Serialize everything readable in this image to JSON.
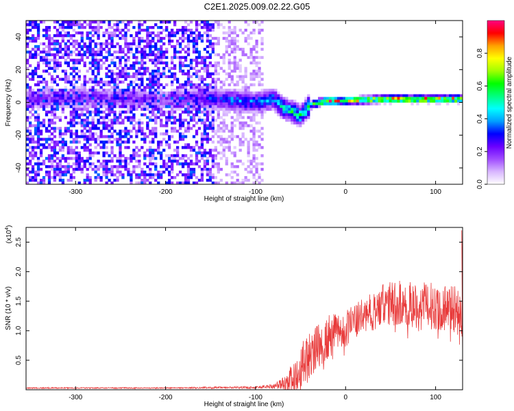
{
  "title": "C2E1.2025.009.02.22.G05",
  "chart_data": [
    {
      "type": "heatmap",
      "title": "",
      "xlabel": "Height of straight line (km)",
      "ylabel": "Frequency (Hz)",
      "xlim": [
        -355,
        130
      ],
      "ylim": [
        -50,
        50
      ],
      "xticks": [
        -300,
        -200,
        -100,
        0,
        100
      ],
      "xtick_labels": [
        "-300",
        "-200",
        "-100",
        "0",
        "100"
      ],
      "yticks": [
        -40,
        -20,
        0,
        20,
        40
      ],
      "ytick_labels": [
        "-40",
        "-20",
        "0",
        "20",
        "40"
      ],
      "colorbar": {
        "label": "Normalized spectral amplitude",
        "range": [
          0,
          1
        ],
        "ticks": [
          0.0,
          0.2,
          0.4,
          0.6,
          0.8
        ],
        "tick_labels": [
          "0.0",
          "0.2",
          "0.4",
          "0.6",
          "0.8"
        ],
        "colormap": [
          "#ffffff",
          "#d8b6ff",
          "#a04cff",
          "#6a00ff",
          "#0000ff",
          "#00a0ff",
          "#00ffff",
          "#00ff80",
          "#00ff00",
          "#a0ff00",
          "#ffff00",
          "#ffa000",
          "#ff0000",
          "#ff0080"
        ]
      },
      "signal_track": [
        {
          "x": -355,
          "f": 2,
          "amp": 0.22
        },
        {
          "x": -300,
          "f": 3,
          "amp": 0.24
        },
        {
          "x": -200,
          "f": 2,
          "amp": 0.2
        },
        {
          "x": -140,
          "f": 2,
          "amp": 0.35
        },
        {
          "x": -120,
          "f": 1,
          "amp": 0.42
        },
        {
          "x": -100,
          "f": 0,
          "amp": 0.4
        },
        {
          "x": -80,
          "f": 2,
          "amp": 0.45
        },
        {
          "x": -70,
          "f": -3,
          "amp": 0.55
        },
        {
          "x": -50,
          "f": -8,
          "amp": 0.55
        },
        {
          "x": -40,
          "f": -2,
          "amp": 0.6
        },
        {
          "x": -30,
          "f": 0,
          "amp": 0.85
        },
        {
          "x": -20,
          "f": 1,
          "amp": 0.9
        },
        {
          "x": 0,
          "f": 1,
          "amp": 0.92
        },
        {
          "x": 40,
          "f": 2,
          "amp": 0.95
        },
        {
          "x": 80,
          "f": 2,
          "amp": 0.95
        },
        {
          "x": 130,
          "f": 2,
          "amp": 0.93
        }
      ]
    },
    {
      "type": "line",
      "title": "",
      "xlabel": "Height of straight line (km)",
      "ylabel": "SNR (10 * v/v)",
      "y_multiplier_label": "(x10",
      "y_multiplier_exp": "4",
      "xlim": [
        -355,
        130
      ],
      "ylim": [
        0,
        2.75
      ],
      "xticks": [
        -300,
        -200,
        -100,
        0,
        100
      ],
      "xtick_labels": [
        "-300",
        "-200",
        "-100",
        "0",
        "100"
      ],
      "yticks": [
        0.5,
        1.0,
        1.5,
        2.0,
        2.5
      ],
      "ytick_labels": [
        "0.5",
        "1.0",
        "1.5",
        "2.0",
        "2.5"
      ],
      "color": "#e83a3a",
      "envelope": {
        "x": [
          -355,
          -200,
          -100,
          -80,
          -65,
          -55,
          -45,
          -35,
          -25,
          -15,
          -5,
          5,
          15,
          25,
          35,
          45,
          55,
          65,
          75,
          85,
          95,
          105,
          115,
          125,
          130
        ],
        "y": [
          0.03,
          0.03,
          0.04,
          0.06,
          0.12,
          0.3,
          0.5,
          0.65,
          0.75,
          0.9,
          1.0,
          1.1,
          1.2,
          1.3,
          1.35,
          1.45,
          1.45,
          1.45,
          1.45,
          1.42,
          1.42,
          1.4,
          1.4,
          1.35,
          1.3
        ],
        "noise": [
          0.01,
          0.01,
          0.02,
          0.04,
          0.15,
          0.3,
          0.4,
          0.4,
          0.45,
          0.4,
          0.35,
          0.3,
          0.3,
          0.3,
          0.35,
          0.4,
          0.4,
          0.4,
          0.4,
          0.4,
          0.4,
          0.4,
          0.4,
          0.45,
          0.5
        ]
      }
    }
  ]
}
